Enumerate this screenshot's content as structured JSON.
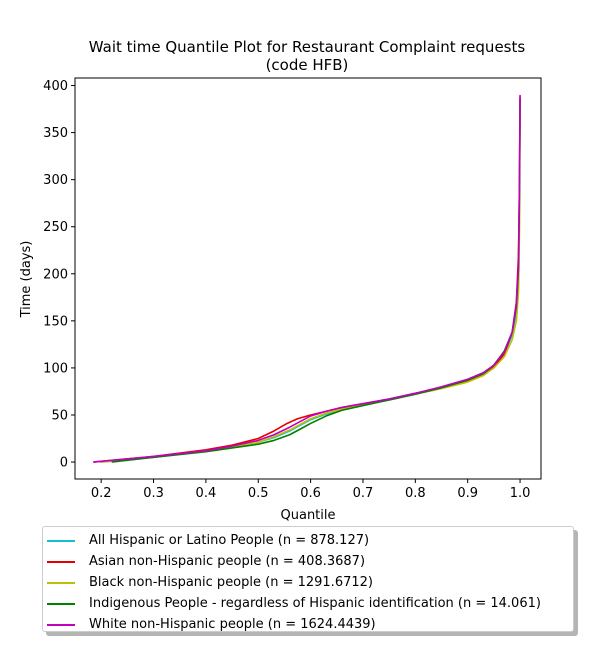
{
  "chart_data": {
    "type": "line",
    "title": "Wait time Quantile Plot for Restaurant Complaint  requests\n(code HFB)",
    "xlabel": "Quantile",
    "ylabel": "Time (days)",
    "xlim": [
      0.15,
      1.04
    ],
    "ylim": [
      -18,
      408
    ],
    "xticks": [
      0.2,
      0.3,
      0.4,
      0.5,
      0.6,
      0.7,
      0.8,
      0.9,
      1.0
    ],
    "xtick_labels": [
      "0.2",
      "0.3",
      "0.4",
      "0.5",
      "0.6",
      "0.7",
      "0.8",
      "0.9",
      "1.0"
    ],
    "yticks": [
      0,
      50,
      100,
      150,
      200,
      250,
      300,
      350,
      400
    ],
    "ytick_labels": [
      "0",
      "50",
      "100",
      "150",
      "200",
      "250",
      "300",
      "350",
      "400"
    ],
    "grid": false,
    "legend_position": "below-plot",
    "series": [
      {
        "name": "All Hispanic or Latino People (n = 878.127)",
        "color": "#17becf",
        "x": [
          0.2,
          0.3,
          0.4,
          0.45,
          0.5,
          0.53,
          0.56,
          0.58,
          0.6,
          0.63,
          0.66,
          0.7,
          0.75,
          0.8,
          0.85,
          0.9,
          0.93,
          0.95,
          0.97,
          0.985,
          0.993,
          0.997,
          0.999,
          1.0
        ],
        "y": [
          0,
          5,
          12,
          16,
          21,
          26,
          33,
          39,
          45,
          51,
          56,
          61,
          67,
          73,
          79,
          87,
          94,
          102,
          115,
          135,
          160,
          200,
          280,
          385
        ]
      },
      {
        "name": "Asian non-Hispanic people (n = 408.3687)",
        "color": "#e50000",
        "x": [
          0.185,
          0.3,
          0.4,
          0.45,
          0.5,
          0.53,
          0.555,
          0.575,
          0.6,
          0.63,
          0.66,
          0.7,
          0.75,
          0.8,
          0.85,
          0.9,
          0.93,
          0.95,
          0.97,
          0.985,
          0.993,
          0.997,
          0.999,
          1.0
        ],
        "y": [
          0,
          6,
          13,
          18,
          25,
          33,
          41,
          46,
          50,
          54,
          58,
          62,
          67,
          73,
          79,
          86,
          93,
          101,
          115,
          138,
          170,
          220,
          300,
          388
        ]
      },
      {
        "name": "Black non-Hispanic people (n = 1291.6712)",
        "color": "#bfbf00",
        "x": [
          0.2,
          0.3,
          0.4,
          0.45,
          0.5,
          0.53,
          0.56,
          0.58,
          0.6,
          0.63,
          0.66,
          0.7,
          0.75,
          0.8,
          0.85,
          0.9,
          0.93,
          0.95,
          0.97,
          0.985,
          0.993,
          0.997,
          0.999,
          1.0
        ],
        "y": [
          0,
          5,
          12,
          16,
          21,
          27,
          34,
          40,
          46,
          52,
          56,
          61,
          66,
          72,
          78,
          85,
          92,
          100,
          112,
          130,
          150,
          180,
          250,
          380
        ]
      },
      {
        "name": "Indigenous People - regardless of Hispanic identification (n = 14.061)",
        "color": "#008000",
        "x": [
          0.22,
          0.3,
          0.4,
          0.45,
          0.5,
          0.53,
          0.56,
          0.58,
          0.6,
          0.63,
          0.66,
          0.7,
          0.75,
          0.8,
          0.85,
          0.9,
          0.93,
          0.95,
          0.97,
          0.985,
          0.993,
          0.997,
          0.999,
          1.0
        ],
        "y": [
          0,
          5,
          11,
          15,
          19,
          23,
          29,
          35,
          41,
          49,
          55,
          60,
          66,
          72,
          79,
          87,
          94,
          103,
          118,
          138,
          165,
          205,
          290,
          385
        ]
      },
      {
        "name": "White non-Hispanic people (n = 1624.4439)",
        "color": "#bf00bf",
        "x": [
          0.185,
          0.3,
          0.4,
          0.45,
          0.5,
          0.53,
          0.56,
          0.58,
          0.6,
          0.63,
          0.66,
          0.7,
          0.75,
          0.8,
          0.85,
          0.9,
          0.93,
          0.95,
          0.97,
          0.985,
          0.993,
          0.997,
          0.999,
          1.0
        ],
        "y": [
          0,
          6,
          12,
          17,
          23,
          29,
          37,
          43,
          49,
          54,
          58,
          62,
          67,
          73,
          80,
          88,
          95,
          103,
          117,
          138,
          168,
          210,
          300,
          390
        ]
      }
    ]
  }
}
